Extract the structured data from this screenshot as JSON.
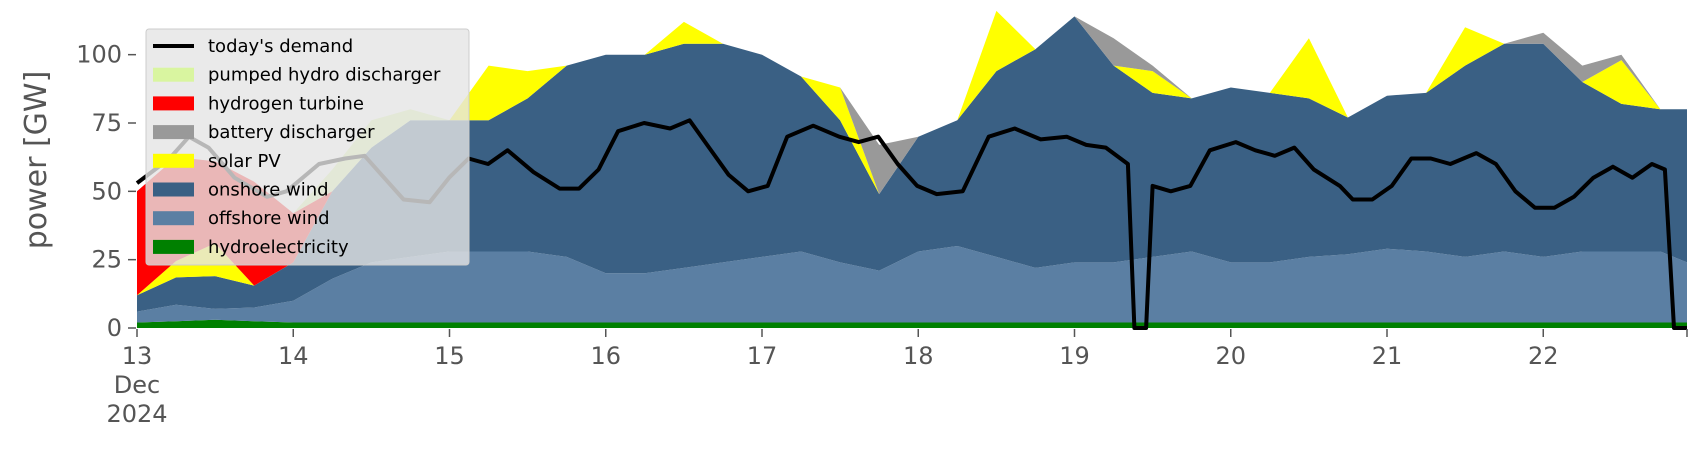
{
  "chart_data": {
    "type": "area",
    "ylabel": "power [GW]",
    "ylim": [
      0,
      120
    ],
    "xlim": [
      0,
      9.92
    ],
    "x_ticks": [
      {
        "value": 0,
        "label": [
          "13",
          "Dec",
          "2024"
        ]
      },
      {
        "value": 1,
        "label": [
          "14"
        ]
      },
      {
        "value": 2,
        "label": [
          "15"
        ]
      },
      {
        "value": 3,
        "label": [
          "16"
        ]
      },
      {
        "value": 4,
        "label": [
          "17"
        ]
      },
      {
        "value": 5,
        "label": [
          "18"
        ]
      },
      {
        "value": 6,
        "label": [
          "19"
        ]
      },
      {
        "value": 7,
        "label": [
          "20"
        ]
      },
      {
        "value": 8,
        "label": [
          "21"
        ]
      },
      {
        "value": 9,
        "label": [
          "22"
        ]
      }
    ],
    "y_ticks": [
      0,
      25,
      50,
      75,
      100
    ],
    "legend_position": "top-left",
    "stack_order": [
      "hydroelectricity",
      "offshore wind",
      "onshore wind",
      "solar PV",
      "battery discharger",
      "hydrogen turbine",
      "pumped hydro discharger"
    ],
    "x": [
      0,
      0.25,
      0.5,
      0.75,
      1,
      1.25,
      1.5,
      1.75,
      2,
      2.25,
      2.5,
      2.75,
      3,
      3.25,
      3.5,
      3.75,
      4,
      4.25,
      4.5,
      4.75,
      5,
      5.25,
      5.5,
      5.75,
      6,
      6.25,
      6.5,
      6.75,
      7,
      7.25,
      7.5,
      7.75,
      8,
      8.25,
      8.5,
      8.75,
      9,
      9.25,
      9.5,
      9.75,
      9.92
    ],
    "series": [
      {
        "name": "hydroelectricity",
        "color": "#008000",
        "values": [
          2,
          2.5,
          3,
          2.5,
          2,
          2,
          2,
          2,
          2,
          2,
          2,
          2,
          2,
          2,
          2,
          2,
          2,
          2,
          2,
          2,
          2,
          2,
          2,
          2,
          2,
          2,
          2,
          2,
          2,
          2,
          2,
          2,
          2,
          2,
          2,
          2,
          2,
          2,
          2,
          2,
          2
        ]
      },
      {
        "name": "offshore wind",
        "color": "#5b7fa3",
        "values": [
          4,
          6,
          4,
          5,
          8,
          16,
          22,
          24,
          26,
          26,
          26,
          24,
          18,
          18,
          20,
          22,
          24,
          26,
          22,
          19,
          26,
          28,
          24,
          20,
          22,
          22,
          24,
          26,
          22,
          22,
          24,
          25,
          27,
          26,
          24,
          26,
          24,
          26,
          26,
          26,
          22
        ]
      },
      {
        "name": "onshore wind",
        "color": "#3a6084",
        "values": [
          6,
          10,
          12,
          8,
          14,
          32,
          42,
          50,
          48,
          48,
          56,
          70,
          80,
          80,
          82,
          80,
          74,
          64,
          52,
          28,
          42,
          46,
          68,
          80,
          90,
          72,
          60,
          56,
          64,
          62,
          58,
          50,
          56,
          58,
          70,
          76,
          78,
          62,
          54,
          52,
          56
        ]
      },
      {
        "name": "solar PV",
        "color": "#ffff00",
        "values": [
          0,
          6,
          12,
          0,
          0,
          0,
          0,
          0,
          0,
          20,
          10,
          0,
          0,
          0,
          8,
          0,
          0,
          0,
          12,
          0,
          0,
          0,
          22,
          0,
          0,
          0,
          8,
          0,
          0,
          0,
          22,
          0,
          0,
          0,
          14,
          0,
          0,
          0,
          16,
          0,
          0
        ]
      },
      {
        "name": "battery discharger",
        "color": "#999999",
        "values": [
          0,
          0,
          0,
          0,
          0,
          0,
          0,
          0,
          0,
          0,
          0,
          0,
          0,
          0,
          0,
          0,
          0,
          0,
          0,
          18,
          0,
          0,
          0,
          0,
          0,
          10,
          2,
          0,
          0,
          0,
          0,
          0,
          0,
          0,
          0,
          0,
          4,
          6,
          2,
          0,
          0
        ]
      },
      {
        "name": "hydrogen turbine",
        "color": "#ff0000",
        "values": [
          38,
          38,
          30,
          38,
          18,
          0,
          0,
          0,
          0,
          0,
          0,
          0,
          0,
          0,
          0,
          0,
          0,
          0,
          0,
          0,
          0,
          0,
          0,
          0,
          0,
          0,
          0,
          0,
          0,
          0,
          0,
          0,
          0,
          0,
          0,
          0,
          0,
          0,
          0,
          0,
          0
        ]
      },
      {
        "name": "pumped hydro discharger",
        "color": "#d9f5a0",
        "values": [
          0,
          0,
          0,
          0,
          0,
          8,
          10,
          4,
          0,
          0,
          0,
          0,
          0,
          0,
          0,
          0,
          0,
          0,
          0,
          0,
          0,
          0,
          0,
          0,
          0,
          0,
          0,
          0,
          0,
          0,
          0,
          0,
          0,
          0,
          0,
          0,
          0,
          0,
          0,
          0,
          0
        ]
      }
    ],
    "demand": {
      "name": "today's demand",
      "color": "#000000",
      "values": [
        [
          0,
          53
        ],
        [
          0.25,
          62
        ],
        [
          0.4,
          70
        ],
        [
          0.55,
          66
        ],
        [
          0.75,
          55
        ],
        [
          1.0,
          48
        ],
        [
          1.15,
          50
        ],
        [
          1.4,
          60
        ],
        [
          1.6,
          62
        ],
        [
          1.75,
          63
        ],
        [
          1.9,
          55
        ],
        [
          2.05,
          47
        ],
        [
          2.25,
          46
        ],
        [
          2.4,
          55
        ],
        [
          2.55,
          62
        ],
        [
          2.7,
          60
        ],
        [
          2.85,
          65
        ],
        [
          3.05,
          57
        ],
        [
          3.25,
          51
        ],
        [
          3.4,
          51
        ],
        [
          3.55,
          58
        ],
        [
          3.7,
          72
        ],
        [
          3.9,
          75
        ],
        [
          4.1,
          73
        ],
        [
          4.25,
          76
        ],
        [
          4.4,
          66
        ],
        [
          4.55,
          56
        ],
        [
          4.7,
          50
        ],
        [
          4.85,
          52
        ],
        [
          5.0,
          70
        ],
        [
          5.2,
          74
        ],
        [
          5.4,
          70
        ],
        [
          5.55,
          68
        ],
        [
          5.7,
          70
        ],
        [
          5.85,
          60
        ],
        [
          6.0,
          52
        ],
        [
          6.15,
          49
        ],
        [
          6.35,
          50
        ],
        [
          6.55,
          70
        ],
        [
          6.75,
          73
        ],
        [
          6.95,
          69
        ],
        [
          7.15,
          70
        ],
        [
          7.3,
          67
        ],
        [
          7.45,
          66
        ],
        [
          7.62,
          60
        ],
        [
          7.67,
          0
        ],
        [
          7.76,
          0
        ],
        [
          7.81,
          52
        ],
        [
          7.95,
          50
        ],
        [
          8.1,
          52
        ],
        [
          8.25,
          65
        ],
        [
          8.45,
          68
        ],
        [
          8.6,
          65
        ],
        [
          8.75,
          63
        ],
        [
          8.9,
          66
        ],
        [
          9.05,
          58
        ],
        [
          9.25,
          52
        ],
        [
          9.35,
          47
        ],
        [
          9.5,
          47
        ],
        [
          9.65,
          52
        ],
        [
          9.8,
          62
        ],
        [
          9.95,
          62
        ],
        [
          10.1,
          60
        ],
        [
          10.3,
          64
        ],
        [
          10.45,
          60
        ],
        [
          10.6,
          50
        ],
        [
          10.75,
          44
        ],
        [
          10.9,
          44
        ],
        [
          11.05,
          48
        ],
        [
          11.2,
          55
        ],
        [
          11.35,
          59
        ],
        [
          11.5,
          55
        ],
        [
          11.65,
          60
        ],
        [
          11.75,
          58
        ],
        [
          11.82,
          0
        ],
        [
          11.92,
          0
        ]
      ]
    }
  },
  "legend": {
    "items": [
      {
        "label": "today's demand",
        "color": "#000000",
        "kind": "line"
      },
      {
        "label": "pumped hydro discharger",
        "color": "#d9f5a0",
        "kind": "patch"
      },
      {
        "label": "hydrogen turbine",
        "color": "#ff0000",
        "kind": "patch"
      },
      {
        "label": "battery discharger",
        "color": "#999999",
        "kind": "patch"
      },
      {
        "label": "solar PV",
        "color": "#ffff00",
        "kind": "patch"
      },
      {
        "label": "onshore wind",
        "color": "#3a6084",
        "kind": "patch"
      },
      {
        "label": "offshore wind",
        "color": "#5b7fa3",
        "kind": "patch"
      },
      {
        "label": "hydroelectricity",
        "color": "#008000",
        "kind": "patch"
      }
    ]
  }
}
